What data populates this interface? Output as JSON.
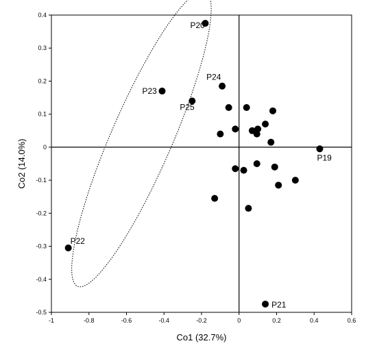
{
  "chart_data": {
    "type": "scatter",
    "title": "",
    "xlabel": "Co1 (32.7%)",
    "ylabel": "Co2 (14.0%)",
    "xlim": [
      -1,
      0.6
    ],
    "ylim": [
      -0.5,
      0.4
    ],
    "x_ticks": [
      "-1",
      "-0.8",
      "-0.6",
      "-0.4",
      "-0.2",
      "0",
      "0.2",
      "0.4",
      "0.6"
    ],
    "y_ticks": [
      "0.4",
      "0.3",
      "0.2",
      "0.1",
      "0",
      "-0.1",
      "-0.2",
      "-0.3",
      "-0.4",
      "-0.5"
    ],
    "grid": false,
    "zero_lines": true,
    "marker_color": "#000000",
    "points": [
      {
        "x": -0.18,
        "y": 0.375,
        "label": "P20"
      },
      {
        "x": -0.41,
        "y": 0.17,
        "label": "P23"
      },
      {
        "x": -0.25,
        "y": 0.14,
        "label": "P25"
      },
      {
        "x": -0.09,
        "y": 0.185,
        "label": "P24"
      },
      {
        "x": -0.91,
        "y": -0.305,
        "label": "P22"
      },
      {
        "x": 0.43,
        "y": -0.005,
        "label": "P19"
      },
      {
        "x": 0.14,
        "y": -0.475,
        "label": "P21"
      },
      {
        "x": -0.055,
        "y": 0.12,
        "label": ""
      },
      {
        "x": 0.04,
        "y": 0.12,
        "label": ""
      },
      {
        "x": 0.18,
        "y": 0.11,
        "label": ""
      },
      {
        "x": 0.14,
        "y": 0.07,
        "label": ""
      },
      {
        "x": -0.02,
        "y": 0.055,
        "label": ""
      },
      {
        "x": 0.07,
        "y": 0.05,
        "label": ""
      },
      {
        "x": 0.1,
        "y": 0.055,
        "label": ""
      },
      {
        "x": 0.095,
        "y": 0.04,
        "label": ""
      },
      {
        "x": -0.1,
        "y": 0.04,
        "label": ""
      },
      {
        "x": 0.17,
        "y": 0.015,
        "label": ""
      },
      {
        "x": 0.095,
        "y": -0.05,
        "label": ""
      },
      {
        "x": -0.02,
        "y": -0.065,
        "label": ""
      },
      {
        "x": 0.025,
        "y": -0.07,
        "label": ""
      },
      {
        "x": 0.19,
        "y": -0.06,
        "label": ""
      },
      {
        "x": 0.3,
        "y": -0.1,
        "label": ""
      },
      {
        "x": 0.21,
        "y": -0.115,
        "label": ""
      },
      {
        "x": -0.13,
        "y": -0.155,
        "label": ""
      },
      {
        "x": 0.05,
        "y": -0.185,
        "label": ""
      }
    ],
    "ellipse": {
      "cx": -0.52,
      "cy": 0.025,
      "rx": 0.565,
      "ry": 0.14,
      "angle_deg": 51,
      "style": "dotted"
    }
  }
}
